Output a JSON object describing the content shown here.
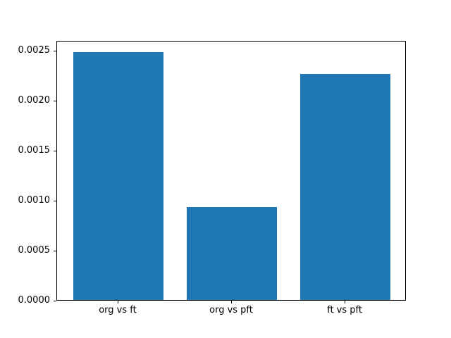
{
  "figure": {
    "background": "#ffffff"
  },
  "chart_data": {
    "type": "bar",
    "categories": [
      "org vs ft",
      "org vs pft",
      "ft vs pft"
    ],
    "values": [
      0.00248,
      0.00093,
      0.00226
    ],
    "title": "",
    "xlabel": "",
    "ylabel": "",
    "ylim": [
      0,
      0.0026
    ],
    "ytick_labels": [
      "0.0000",
      "0.0005",
      "0.0010",
      "0.0015",
      "0.0020",
      "0.0025"
    ],
    "bar_color": "#1f77b4",
    "bar_width_fraction": 0.8,
    "x_edge_margin": 0.54,
    "axes_background": "#ffffff",
    "spine_color": "#000000",
    "tick_color": "#000000",
    "tick_label_color": "#000000",
    "grid": false,
    "legend_position": "none"
  }
}
